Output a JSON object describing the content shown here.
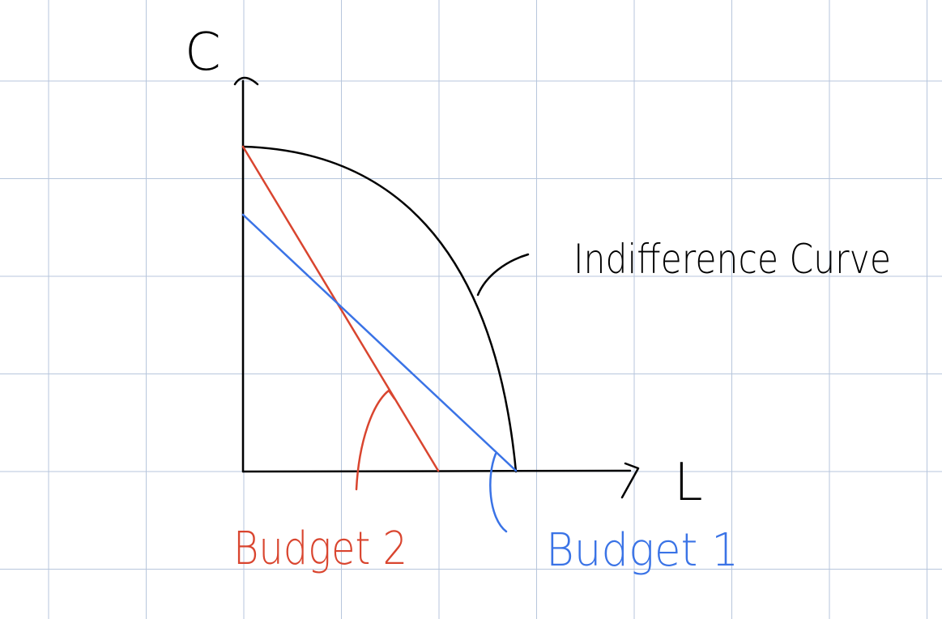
{
  "labels": {
    "y_axis": "C",
    "x_axis": "L",
    "curve": "Indifference Curve",
    "budget2": "Budget 2",
    "budget1": "Budget 1"
  },
  "colors": {
    "grid": "#b7c6dc",
    "ink": "#000000",
    "budget2": "#d9452f",
    "budget1": "#3a73e6"
  }
}
